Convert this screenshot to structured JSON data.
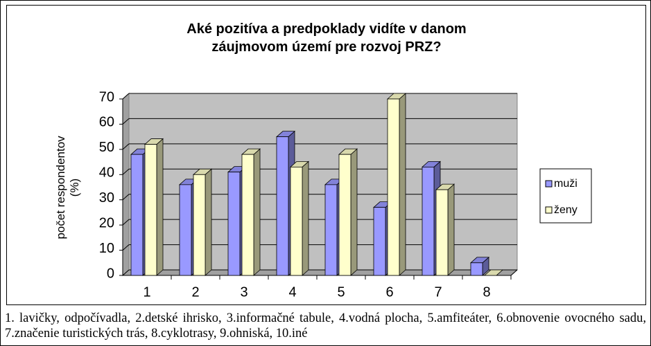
{
  "chart_data": {
    "type": "bar",
    "title": "Aké pozitíva a predpoklady vidíte v danom záujmovom území pre rozvoj PRZ?",
    "ylabel": [
      "počet respondentov",
      "(%)"
    ],
    "categories": [
      "1",
      "2",
      "3",
      "4",
      "5",
      "6",
      "7",
      "8"
    ],
    "series": [
      {
        "name": "muži",
        "color": "#9999ff",
        "values": [
          48,
          36,
          41,
          55,
          36,
          27,
          43,
          5
        ]
      },
      {
        "name": "ženy",
        "color": "#ffffcc",
        "values": [
          52,
          40,
          48,
          43,
          48,
          70,
          34,
          0
        ]
      }
    ],
    "ylim": [
      0,
      70
    ],
    "yticks": [
      0,
      10,
      20,
      30,
      40,
      50,
      60,
      70
    ],
    "grid": true,
    "legend": "right",
    "caption": "1. lavičky, odpočívadla, 2.detské ihrisko, 3.informačné tabule, 4.vodná plocha, 5.amfiteáter, 6.obnovenie ovocného sadu, 7.značenie turistických trás, 8.cyklotrasy, 9.ohniská, 10.iné"
  }
}
